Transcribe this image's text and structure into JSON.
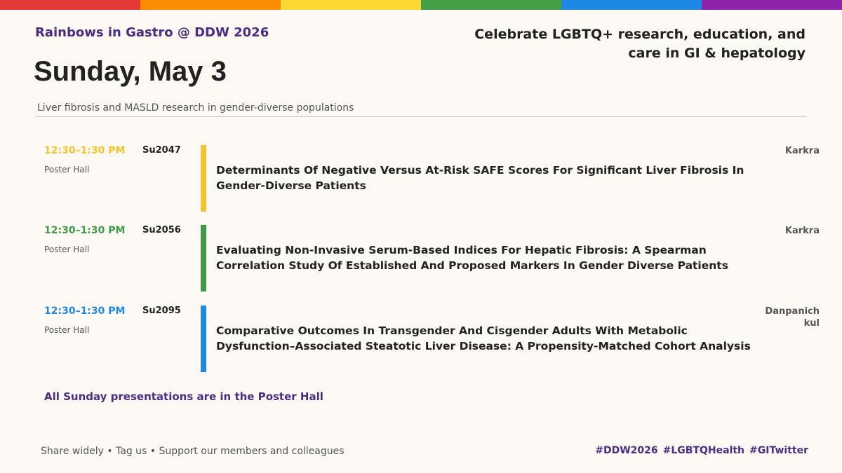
{
  "header": {
    "brand": "Rainbows in Gastro @ DDW 2026",
    "date": "Sunday, May 3",
    "subtitle": "Liver fibrosis and MASLD research in gender-diverse populations",
    "tagline": "Celebrate LGBTQ+ research, education, and care in GI & hepatology"
  },
  "sessions": [
    {
      "time": "12:30–1:30 PM",
      "location": "Poster Hall",
      "code": "Su2047",
      "title": "Determinants Of Negative Versus At-Risk SAFE Scores For Significant Liver Fibrosis In Gender-Diverse Patients",
      "author": "Karkra"
    },
    {
      "time": "12:30–1:30 PM",
      "location": "Poster Hall",
      "code": "Su2056",
      "title": "Evaluating Non-Invasive Serum-Based Indices For Hepatic Fibrosis: A Spearman Correlation Study Of Established And Proposed Markers In Gender Diverse Patients",
      "author": "Karkra"
    },
    {
      "time": "12:30–1:30 PM",
      "location": "Poster Hall",
      "code": "Su2095",
      "title": "Comparative Outcomes In Transgender And Cisgender Adults With Metabolic Dysfunction–Associated Steatotic Liver Disease: A Propensity-Matched Cohort Analysis",
      "author": "Danpanichkul"
    }
  ],
  "note": "All Sunday presentations are in the Poster Hall",
  "footer": {
    "left": "Share widely • Tag us • Support our members and colleagues",
    "hashtags": [
      "#DDW2026",
      "#LGBTQHealth",
      "#GITwitter"
    ]
  }
}
